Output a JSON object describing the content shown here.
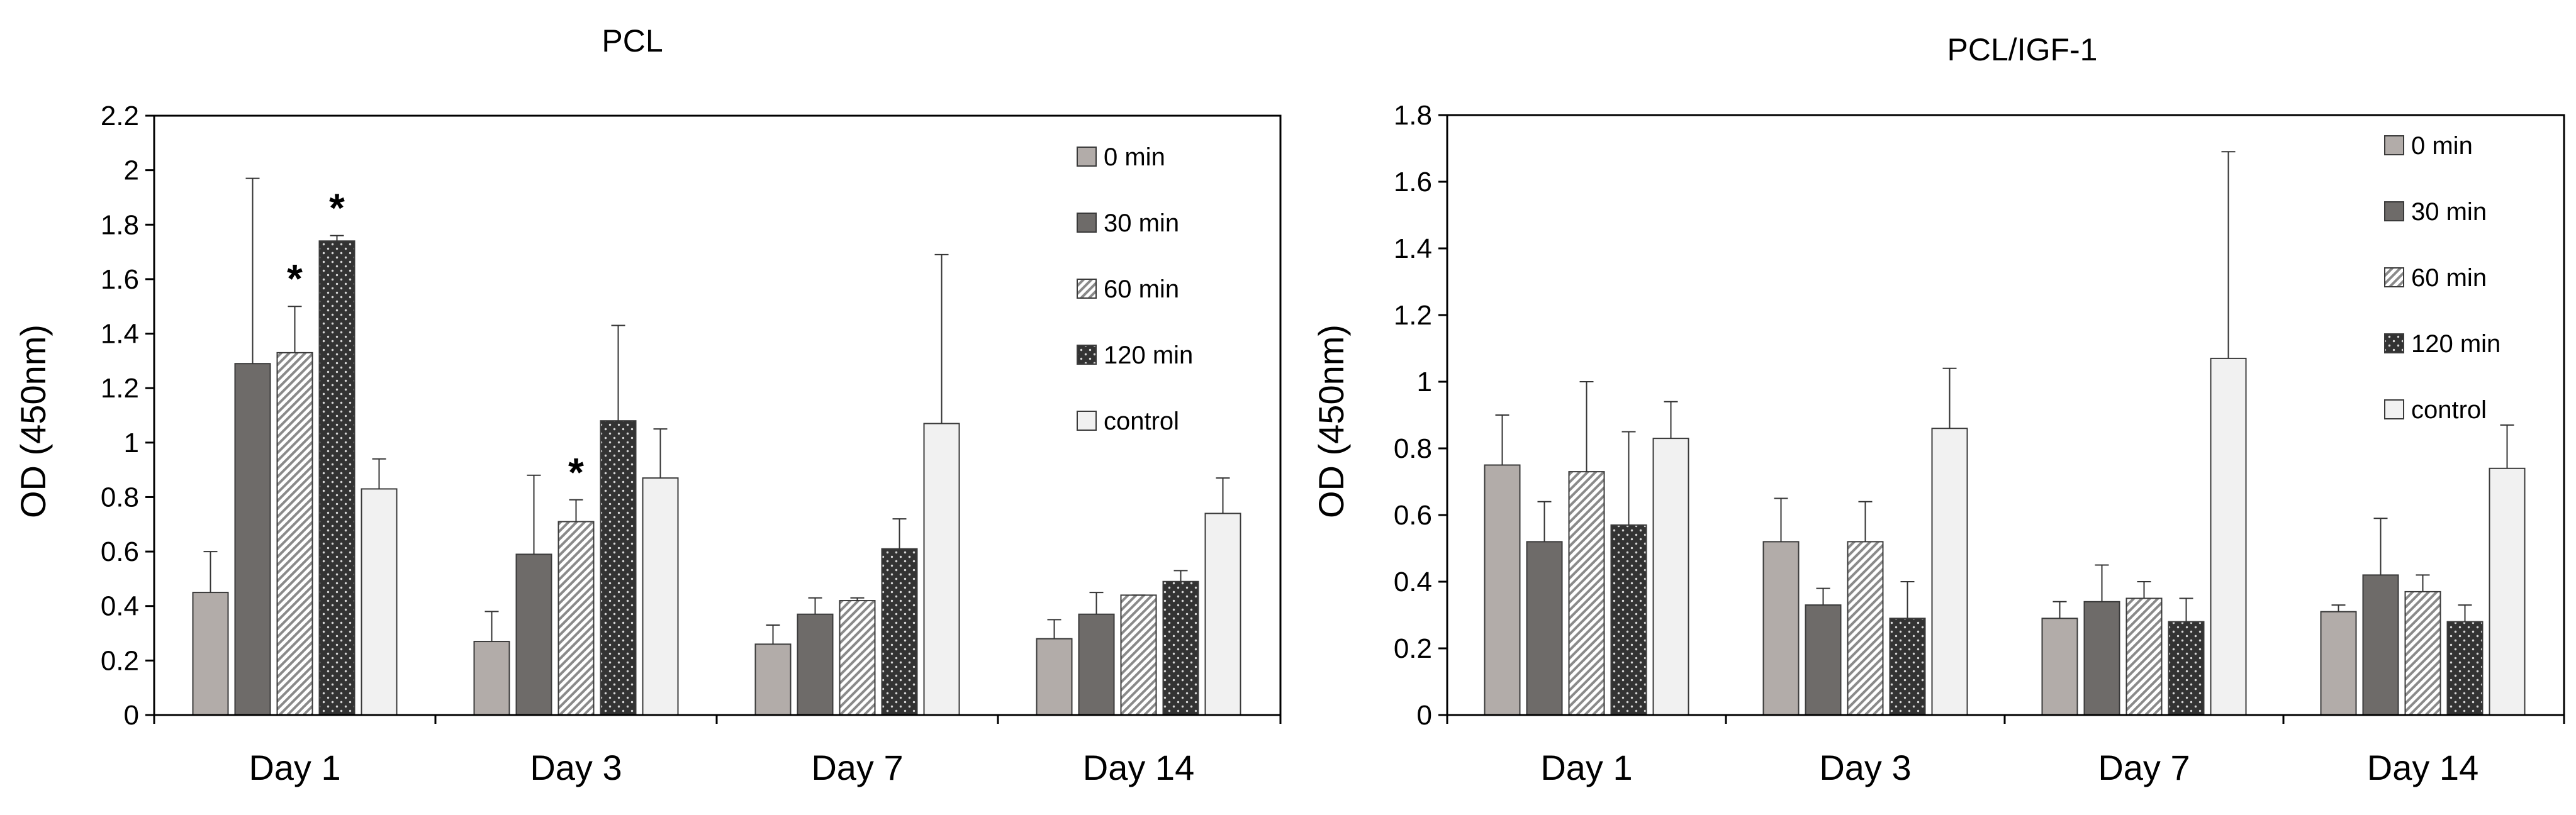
{
  "chart_data": [
    {
      "type": "bar",
      "title": "PCL",
      "xlabel": "",
      "ylabel": "OD  (450nm)",
      "categories": [
        "Day 1",
        "Day 3",
        "Day 7",
        "Day 14"
      ],
      "ylim": [
        0,
        2.2
      ],
      "yticks": [
        "0",
        "0.2",
        "0.4",
        "0.6",
        "0.8",
        "1",
        "1.2",
        "1.4",
        "1.6",
        "1.8",
        "2",
        "2.2"
      ],
      "legend_position": "top-right",
      "grid": false,
      "series": [
        {
          "name": "0 min",
          "values": [
            0.45,
            0.27,
            0.26,
            0.28
          ],
          "errors": [
            0.15,
            0.11,
            0.07,
            0.07
          ],
          "pattern": "light-gray",
          "color": "#b2aca9"
        },
        {
          "name": "30 min",
          "values": [
            1.29,
            0.59,
            0.37,
            0.37
          ],
          "errors": [
            0.68,
            0.29,
            0.06,
            0.08
          ],
          "pattern": "dark-gray",
          "color": "#6e6b69"
        },
        {
          "name": "60 min",
          "values": [
            1.33,
            0.71,
            0.42,
            0.44
          ],
          "errors": [
            0.17,
            0.08,
            0.01,
            0.0
          ],
          "pattern": "hatched",
          "color": "#ffffff"
        },
        {
          "name": "120 min",
          "values": [
            1.74,
            1.08,
            0.61,
            0.49
          ],
          "errors": [
            0.02,
            0.35,
            0.11,
            0.04
          ],
          "pattern": "dotted",
          "color": "#383838"
        },
        {
          "name": "control",
          "values": [
            0.83,
            0.87,
            1.07,
            0.74
          ],
          "errors": [
            0.11,
            0.18,
            0.62,
            0.13
          ],
          "pattern": "white",
          "color": "#f1f1f1"
        }
      ],
      "annotations": [
        {
          "text": "*",
          "category": "Day 1",
          "series": "60 min"
        },
        {
          "text": "*",
          "category": "Day 1",
          "series": "120 min"
        },
        {
          "text": "*",
          "category": "Day 3",
          "series": "60 min"
        }
      ]
    },
    {
      "type": "bar",
      "title": "PCL/IGF-1",
      "xlabel": "",
      "ylabel": "OD  (450nm)",
      "categories": [
        "Day 1",
        "Day 3",
        "Day 7",
        "Day 14"
      ],
      "ylim": [
        0,
        1.8
      ],
      "yticks": [
        "0",
        "0.2",
        "0.4",
        "0.6",
        "0.8",
        "1",
        "1.2",
        "1.4",
        "1.6",
        "1.8"
      ],
      "legend_position": "top-right",
      "grid": false,
      "series": [
        {
          "name": "0 min",
          "values": [
            0.75,
            0.52,
            0.29,
            0.31
          ],
          "errors": [
            0.15,
            0.13,
            0.05,
            0.02
          ],
          "pattern": "light-gray",
          "color": "#b2aca9"
        },
        {
          "name": "30 min",
          "values": [
            0.52,
            0.33,
            0.34,
            0.42
          ],
          "errors": [
            0.12,
            0.05,
            0.11,
            0.17
          ],
          "pattern": "dark-gray",
          "color": "#6e6b69"
        },
        {
          "name": "60 min",
          "values": [
            0.73,
            0.52,
            0.35,
            0.37
          ],
          "errors": [
            0.27,
            0.12,
            0.05,
            0.05
          ],
          "pattern": "hatched",
          "color": "#ffffff"
        },
        {
          "name": "120 min",
          "values": [
            0.57,
            0.29,
            0.28,
            0.28
          ],
          "errors": [
            0.28,
            0.11,
            0.07,
            0.05
          ],
          "pattern": "dotted",
          "color": "#383838"
        },
        {
          "name": "control",
          "values": [
            0.83,
            0.86,
            1.07,
            0.74
          ],
          "errors": [
            0.11,
            0.18,
            0.62,
            0.13
          ],
          "pattern": "white",
          "color": "#f1f1f1"
        }
      ],
      "annotations": []
    }
  ]
}
